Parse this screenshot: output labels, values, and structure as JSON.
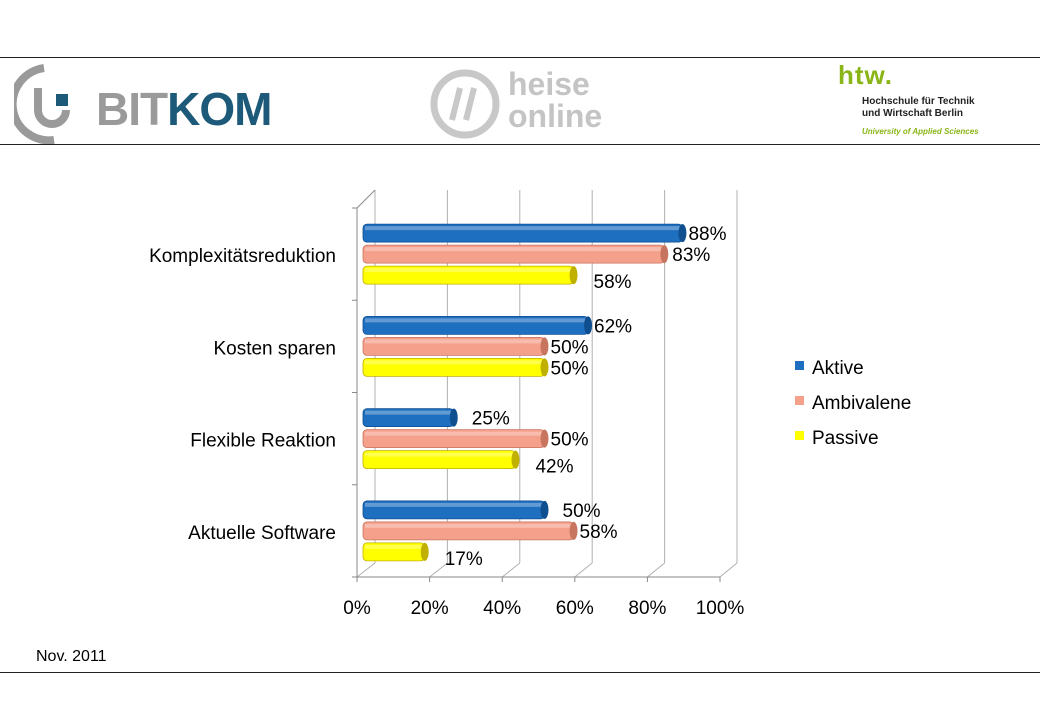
{
  "header": {
    "logos": {
      "bitkom": {
        "text_gray": "BIT",
        "text_blue": "KOM"
      },
      "heise": {
        "line1": "heise",
        "line2": "online"
      },
      "htw": {
        "mark": "htw.",
        "line1": "Hochschule für Technik",
        "line2": "und Wirtschaft Berlin",
        "line3": "University of Applied Sciences"
      }
    }
  },
  "footer": {
    "date": "Nov. 2011"
  },
  "colors": {
    "Aktive": "#1f6fc0",
    "Ambivalene": "#f4a08a",
    "Passive": "#ffff00"
  },
  "chart_data": {
    "type": "bar",
    "orientation": "horizontal",
    "categories": [
      "Komplexitätsreduktion",
      "Kosten sparen",
      "Flexible Reaktion",
      "Aktuelle Software"
    ],
    "series": [
      {
        "name": "Aktive",
        "values": [
          88,
          62,
          25,
          50
        ]
      },
      {
        "name": "Ambivalene",
        "values": [
          83,
          50,
          50,
          58
        ]
      },
      {
        "name": "Passive",
        "values": [
          58,
          50,
          42,
          17
        ]
      }
    ],
    "data_labels": [
      [
        "88%",
        "62%",
        "25%",
        "50%"
      ],
      [
        "83%",
        "50%",
        "50%",
        "58%"
      ],
      [
        "58%",
        "50%",
        "42%",
        "17%"
      ]
    ],
    "xticks": [
      "0%",
      "20%",
      "40%",
      "60%",
      "80%",
      "100%"
    ],
    "xlim": [
      0,
      100
    ],
    "grid": true,
    "legend": "right",
    "title": "",
    "xlabel": "",
    "ylabel": ""
  }
}
